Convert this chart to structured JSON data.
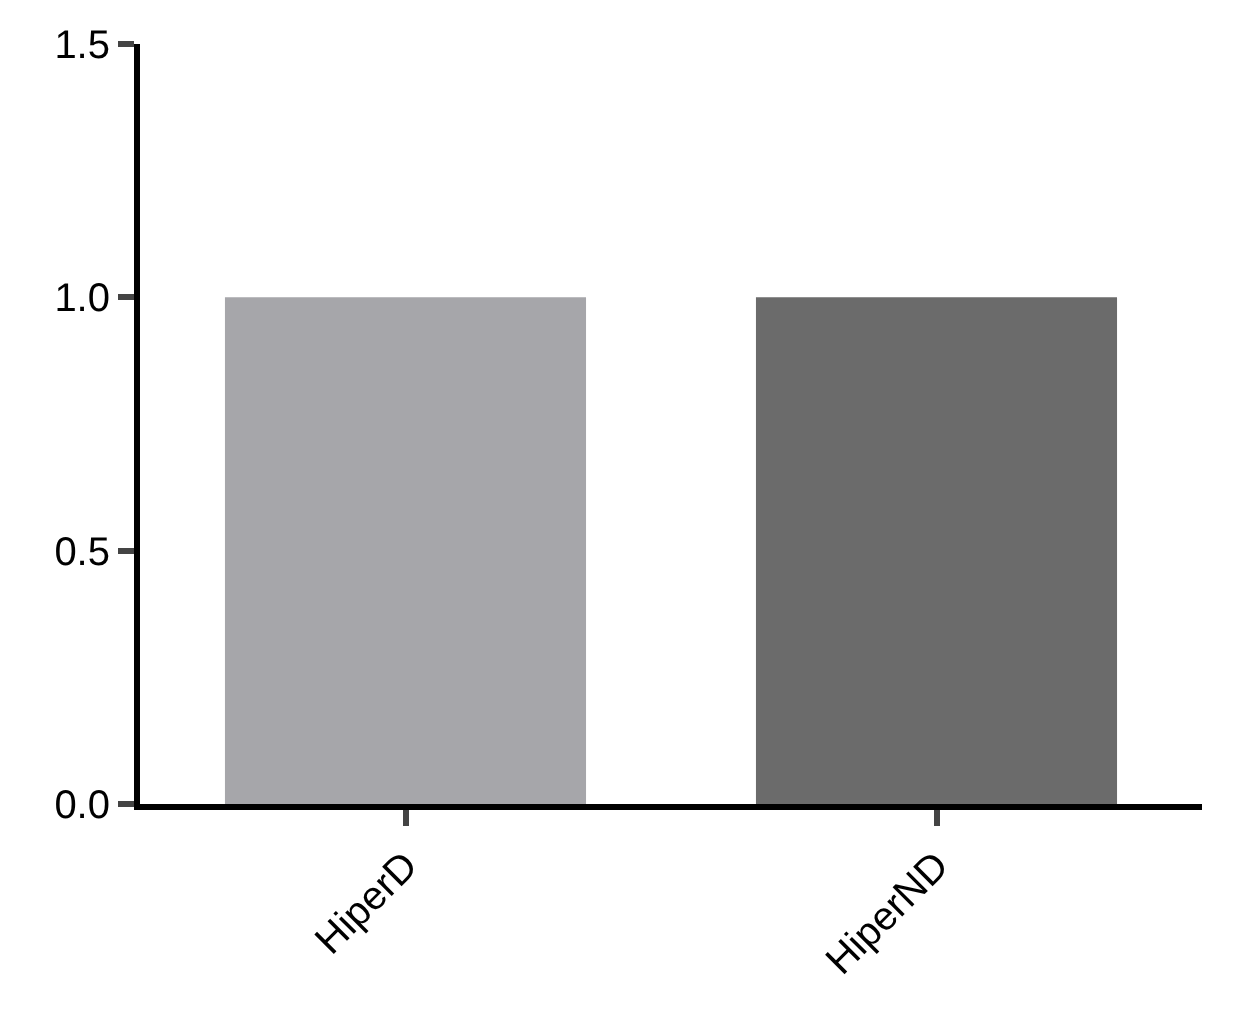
{
  "chart_data": {
    "type": "bar",
    "categories": [
      "HiperD",
      "HiperND"
    ],
    "values": [
      1.0,
      1.0
    ],
    "colors": [
      "#a6a6aa",
      "#6b6b6b"
    ],
    "ylim": [
      0,
      1.5
    ],
    "yticks": [
      {
        "value": 0,
        "label": "0.0"
      },
      {
        "value": 0.5,
        "label": "0.5"
      },
      {
        "value": 1,
        "label": "1.0"
      },
      {
        "value": 1.5,
        "label": "1.5"
      }
    ]
  }
}
